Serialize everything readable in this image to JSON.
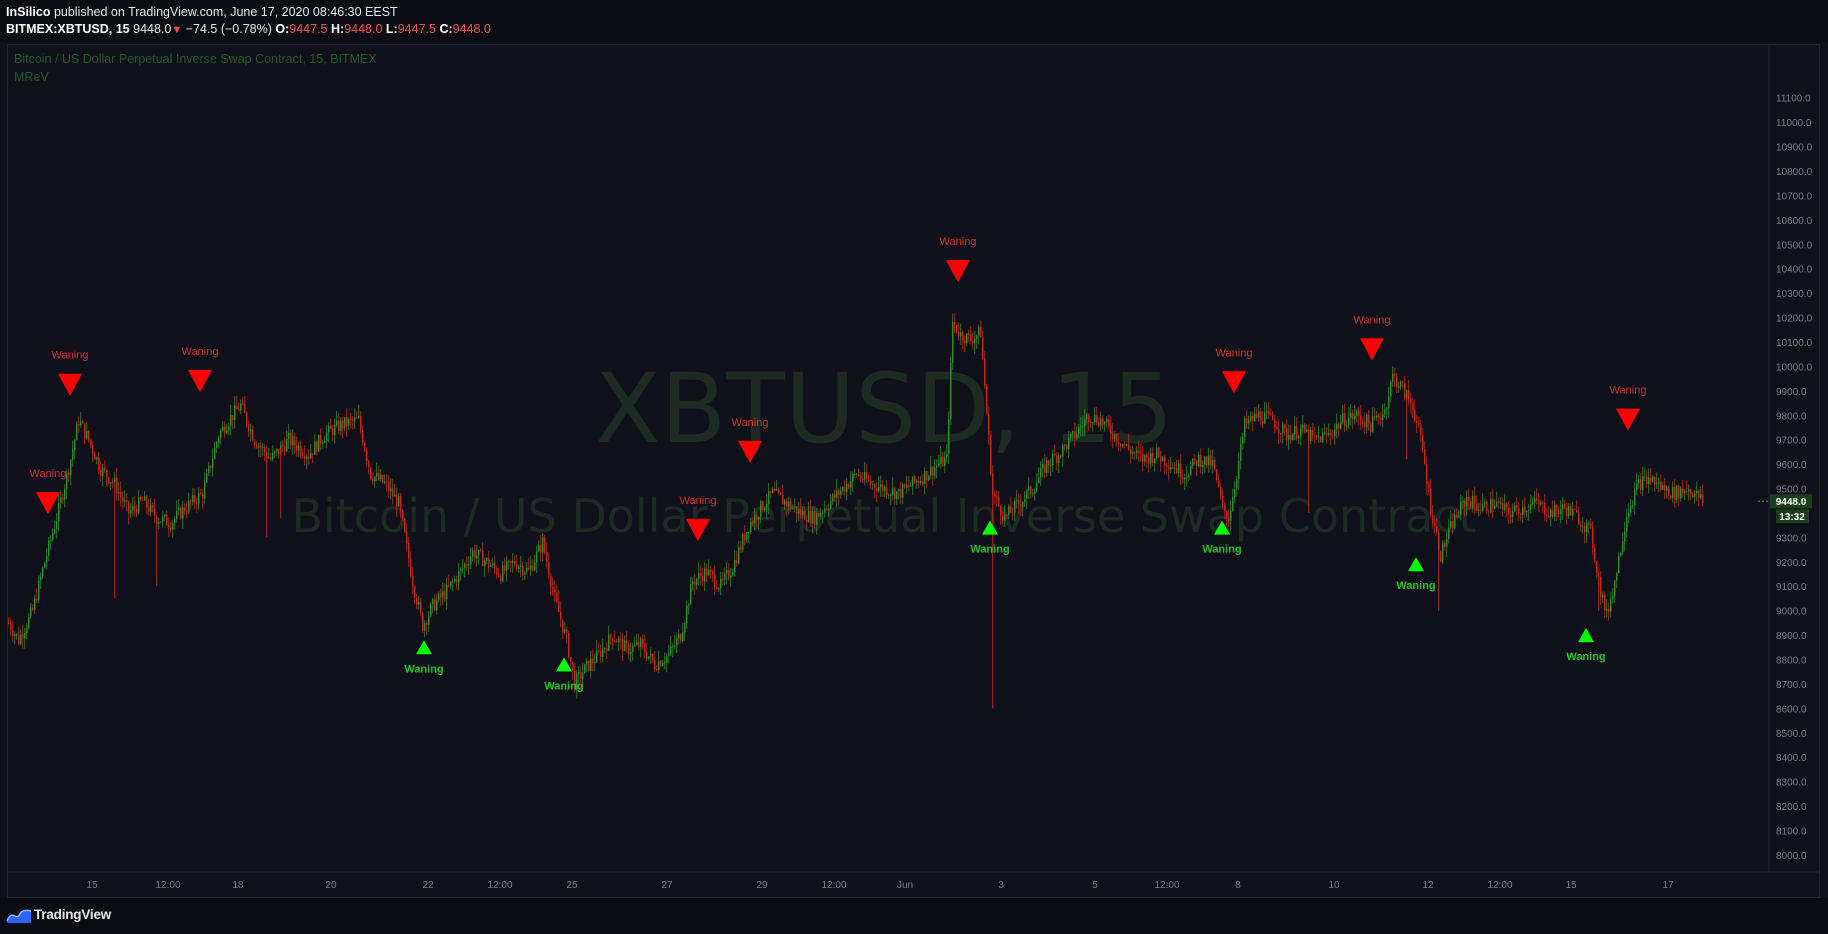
{
  "header": {
    "author": "InSilico",
    "published_text": "published on TradingView.com, June 17, 2020 08:46:30 EEST",
    "symbol": "BITMEX:XBTUSD, 15",
    "last_price": "9448.0",
    "change": "−74.5 (−0.78%)",
    "open_label": "O:",
    "open": "9447.5",
    "high_label": "H:",
    "high": "9448.0",
    "low_label": "L:",
    "low": "9447.5",
    "close_label": "C:",
    "close": "9448.0"
  },
  "pane": {
    "title": "Bitcoin / US Dollar Perpetual Inverse Swap Contract, 15, BITMEX",
    "indicator": "MReV"
  },
  "watermark": {
    "symbol": "XBTUSD, 15",
    "description": "Bitcoin / US Dollar Perpetual Inverse Swap Contract"
  },
  "footer": {
    "brand": "TradingView"
  },
  "colors": {
    "background": "#0f1019",
    "up": "#2e8b2e",
    "down": "#c0281e",
    "signal_down": "#ff0000",
    "signal_up": "#00ff00",
    "grid_text": "#7b7e8a",
    "watermark": "#1d2a22"
  },
  "chart_data": {
    "type": "candlestick",
    "title": "Bitcoin / US Dollar Perpetual Inverse Swap Contract, 15, BITMEX",
    "ylim": [
      7930,
      11320
    ],
    "y_ticks": [
      8000,
      8100,
      8200,
      8300,
      8400,
      8500,
      8600,
      8700,
      8800,
      8900,
      9000,
      9100,
      9200,
      9300,
      9400,
      9500,
      9600,
      9700,
      9800,
      9900,
      10000,
      10100,
      10200,
      10300,
      10400,
      10500,
      10600,
      10700,
      10800,
      10900,
      11000,
      11100
    ],
    "y_tick_labels": [
      "8000.0",
      "8100.0",
      "8200.0",
      "8300.0",
      "8400.0",
      "8500.0",
      "8600.0",
      "8700.0",
      "8800.0",
      "8900.0",
      "9000.0",
      "9100.0",
      "9200.0",
      "9300.0",
      "9400.0",
      "9500.0",
      "9600.0",
      "9700.0",
      "9800.0",
      "9900.0",
      "10000.0",
      "10100.0",
      "10200.0",
      "10300.0",
      "10400.0",
      "10500.0",
      "10600.0",
      "10700.0",
      "10800.0",
      "10900.0",
      "11000.0",
      "11100.0"
    ],
    "x_range": [
      0,
      1752
    ],
    "x_ticks": [
      {
        "x": 84,
        "label": "15"
      },
      {
        "x": 160,
        "label": "12:00"
      },
      {
        "x": 230,
        "label": "18"
      },
      {
        "x": 323,
        "label": "20"
      },
      {
        "x": 420,
        "label": "22"
      },
      {
        "x": 492,
        "label": "12:00"
      },
      {
        "x": 564,
        "label": "25"
      },
      {
        "x": 659,
        "label": "27"
      },
      {
        "x": 754,
        "label": "29"
      },
      {
        "x": 826,
        "label": "12:00"
      },
      {
        "x": 897,
        "label": "Jun"
      },
      {
        "x": 993,
        "label": "3"
      },
      {
        "x": 1087,
        "label": "5"
      },
      {
        "x": 1159,
        "label": "12:00"
      },
      {
        "x": 1230,
        "label": "8"
      },
      {
        "x": 1326,
        "label": "10"
      },
      {
        "x": 1420,
        "label": "12"
      },
      {
        "x": 1492,
        "label": "12:00"
      },
      {
        "x": 1563,
        "label": "15"
      },
      {
        "x": 1660,
        "label": "17"
      }
    ],
    "price_anchors": [
      [
        0,
        8950
      ],
      [
        10,
        8880
      ],
      [
        24,
        9000
      ],
      [
        36,
        9200
      ],
      [
        48,
        9380
      ],
      [
        62,
        9620
      ],
      [
        70,
        9780
      ],
      [
        80,
        9700
      ],
      [
        92,
        9580
      ],
      [
        106,
        9520
      ],
      [
        120,
        9400
      ],
      [
        134,
        9450
      ],
      [
        148,
        9380
      ],
      [
        162,
        9360
      ],
      [
        176,
        9420
      ],
      [
        194,
        9480
      ],
      [
        210,
        9720
      ],
      [
        220,
        9780
      ],
      [
        232,
        9840
      ],
      [
        246,
        9700
      ],
      [
        262,
        9620
      ],
      [
        280,
        9700
      ],
      [
        300,
        9640
      ],
      [
        316,
        9720
      ],
      [
        332,
        9760
      ],
      [
        350,
        9780
      ],
      [
        362,
        9560
      ],
      [
        376,
        9520
      ],
      [
        390,
        9440
      ],
      [
        404,
        9120
      ],
      [
        414,
        8940
      ],
      [
        424,
        9020
      ],
      [
        438,
        9080
      ],
      [
        452,
        9160
      ],
      [
        464,
        9240
      ],
      [
        478,
        9200
      ],
      [
        492,
        9150
      ],
      [
        506,
        9200
      ],
      [
        520,
        9160
      ],
      [
        534,
        9280
      ],
      [
        546,
        9050
      ],
      [
        558,
        8880
      ],
      [
        566,
        8700
      ],
      [
        576,
        8760
      ],
      [
        590,
        8820
      ],
      [
        604,
        8900
      ],
      [
        618,
        8840
      ],
      [
        632,
        8860
      ],
      [
        646,
        8780
      ],
      [
        660,
        8820
      ],
      [
        672,
        8900
      ],
      [
        684,
        9120
      ],
      [
        698,
        9160
      ],
      [
        712,
        9100
      ],
      [
        724,
        9180
      ],
      [
        740,
        9350
      ],
      [
        752,
        9420
      ],
      [
        764,
        9480
      ],
      [
        778,
        9440
      ],
      [
        792,
        9400
      ],
      [
        806,
        9380
      ],
      [
        820,
        9440
      ],
      [
        834,
        9500
      ],
      [
        848,
        9560
      ],
      [
        862,
        9520
      ],
      [
        876,
        9500
      ],
      [
        890,
        9480
      ],
      [
        904,
        9520
      ],
      [
        918,
        9560
      ],
      [
        930,
        9600
      ],
      [
        938,
        9620
      ],
      [
        944,
        10180
      ],
      [
        952,
        10130
      ],
      [
        962,
        10110
      ],
      [
        972,
        10140
      ],
      [
        984,
        9480
      ],
      [
        996,
        9380
      ],
      [
        1010,
        9440
      ],
      [
        1024,
        9500
      ],
      [
        1038,
        9600
      ],
      [
        1052,
        9650
      ],
      [
        1066,
        9720
      ],
      [
        1080,
        9800
      ],
      [
        1092,
        9780
      ],
      [
        1106,
        9720
      ],
      [
        1120,
        9660
      ],
      [
        1134,
        9620
      ],
      [
        1148,
        9640
      ],
      [
        1162,
        9600
      ],
      [
        1176,
        9560
      ],
      [
        1190,
        9620
      ],
      [
        1204,
        9600
      ],
      [
        1214,
        9420
      ],
      [
        1220,
        9380
      ],
      [
        1228,
        9560
      ],
      [
        1236,
        9760
      ],
      [
        1250,
        9800
      ],
      [
        1264,
        9780
      ],
      [
        1278,
        9720
      ],
      [
        1292,
        9740
      ],
      [
        1306,
        9700
      ],
      [
        1320,
        9720
      ],
      [
        1334,
        9780
      ],
      [
        1348,
        9800
      ],
      [
        1362,
        9760
      ],
      [
        1376,
        9820
      ],
      [
        1384,
        9960
      ],
      [
        1392,
        9920
      ],
      [
        1404,
        9840
      ],
      [
        1414,
        9660
      ],
      [
        1422,
        9420
      ],
      [
        1432,
        9230
      ],
      [
        1444,
        9360
      ],
      [
        1458,
        9460
      ],
      [
        1472,
        9420
      ],
      [
        1486,
        9440
      ],
      [
        1500,
        9400
      ],
      [
        1514,
        9420
      ],
      [
        1528,
        9440
      ],
      [
        1542,
        9400
      ],
      [
        1556,
        9420
      ],
      [
        1570,
        9380
      ],
      [
        1582,
        9320
      ],
      [
        1592,
        9080
      ],
      [
        1598,
        8980
      ],
      [
        1606,
        9120
      ],
      [
        1618,
        9400
      ],
      [
        1630,
        9520
      ],
      [
        1642,
        9540
      ],
      [
        1654,
        9500
      ],
      [
        1666,
        9480
      ],
      [
        1680,
        9500
      ],
      [
        1694,
        9448
      ]
    ],
    "wick_spikes": [
      [
        106,
        9050
      ],
      [
        148,
        9100
      ],
      [
        258,
        9300
      ],
      [
        272,
        9380
      ],
      [
        984,
        8600
      ],
      [
        1300,
        9400
      ],
      [
        1398,
        9620
      ],
      [
        1430,
        9000
      ],
      [
        1590,
        9000
      ]
    ],
    "signals": [
      {
        "type": "down",
        "x": 40,
        "price": 9440,
        "label": "Waning"
      },
      {
        "type": "down",
        "x": 62,
        "price": 9925,
        "label": "Waning"
      },
      {
        "type": "down",
        "x": 192,
        "price": 9940,
        "label": "Waning"
      },
      {
        "type": "up",
        "x": 416,
        "price": 8850,
        "label": "Waning"
      },
      {
        "type": "up",
        "x": 556,
        "price": 8780,
        "label": "Waning"
      },
      {
        "type": "down",
        "x": 690,
        "price": 9330,
        "label": "Waning"
      },
      {
        "type": "down",
        "x": 742,
        "price": 9650,
        "label": "Waning"
      },
      {
        "type": "down",
        "x": 950,
        "price": 10390,
        "label": "Waning"
      },
      {
        "type": "up",
        "x": 982,
        "price": 9340,
        "label": "Waning"
      },
      {
        "type": "down",
        "x": 1226,
        "price": 9935,
        "label": "Waning"
      },
      {
        "type": "up",
        "x": 1214,
        "price": 9340,
        "label": "Waning"
      },
      {
        "type": "down",
        "x": 1364,
        "price": 10070,
        "label": "Waning"
      },
      {
        "type": "up",
        "x": 1408,
        "price": 9190,
        "label": "Waning"
      },
      {
        "type": "up",
        "x": 1578,
        "price": 8900,
        "label": "Waning"
      },
      {
        "type": "down",
        "x": 1620,
        "price": 9782,
        "label": "Waning"
      }
    ],
    "last_price_label": "9448.0",
    "countdown_label": "13:32"
  }
}
